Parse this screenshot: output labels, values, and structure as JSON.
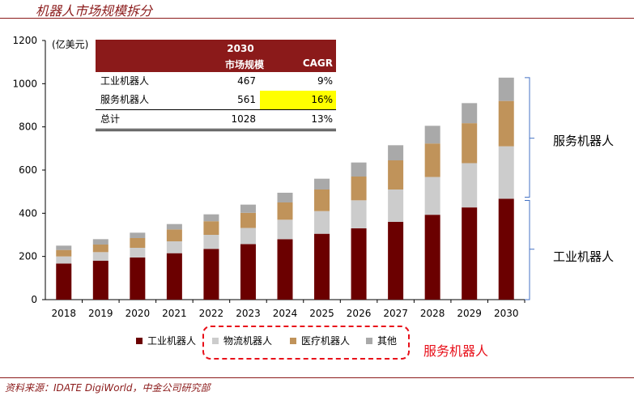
{
  "header": {
    "title": "机器人市场规模拆分"
  },
  "source": "资料来源：IDATE DigiWorld，中金公司研究部",
  "chart_data": {
    "type": "bar",
    "stacked": true,
    "unit_label": "(亿美元)",
    "categories": [
      "2018",
      "2019",
      "2020",
      "2021",
      "2022",
      "2023",
      "2024",
      "2025",
      "2026",
      "2027",
      "2028",
      "2029",
      "2030"
    ],
    "ylim": [
      0,
      1200
    ],
    "yticks": [
      0,
      200,
      400,
      600,
      800,
      1000,
      1200
    ],
    "series": [
      {
        "name": "工业机器人",
        "color": "#6b0000",
        "values": [
          167,
          180,
          195,
          215,
          235,
          257,
          280,
          305,
          330,
          360,
          393,
          427,
          467
        ]
      },
      {
        "name": "物流机器人",
        "color": "#cccccc",
        "values": [
          33,
          40,
          45,
          55,
          65,
          75,
          90,
          105,
          130,
          150,
          175,
          205,
          243
        ]
      },
      {
        "name": "医疗机器人",
        "color": "#c0935a",
        "values": [
          30,
          35,
          45,
          55,
          63,
          70,
          80,
          100,
          110,
          135,
          155,
          185,
          210
        ]
      },
      {
        "name": "其他",
        "color": "#a9a9a9",
        "values": [
          20,
          25,
          25,
          25,
          32,
          38,
          45,
          50,
          65,
          70,
          82,
          93,
          108
        ]
      }
    ],
    "side_labels": {
      "top": "服务机器人",
      "bottom": "工业机器人"
    },
    "dashed_group_label": "服务机器人",
    "inset_table": {
      "header_year": "2030",
      "col1": "市场规模",
      "col2": "CAGR",
      "rows": [
        {
          "name": "工业机器人",
          "size": "467",
          "cagr": "9%"
        },
        {
          "name": "服务机器人",
          "size": "561",
          "cagr": "16%",
          "highlight": true
        },
        {
          "name": "总计",
          "size": "1028",
          "cagr": "13%"
        }
      ]
    }
  }
}
